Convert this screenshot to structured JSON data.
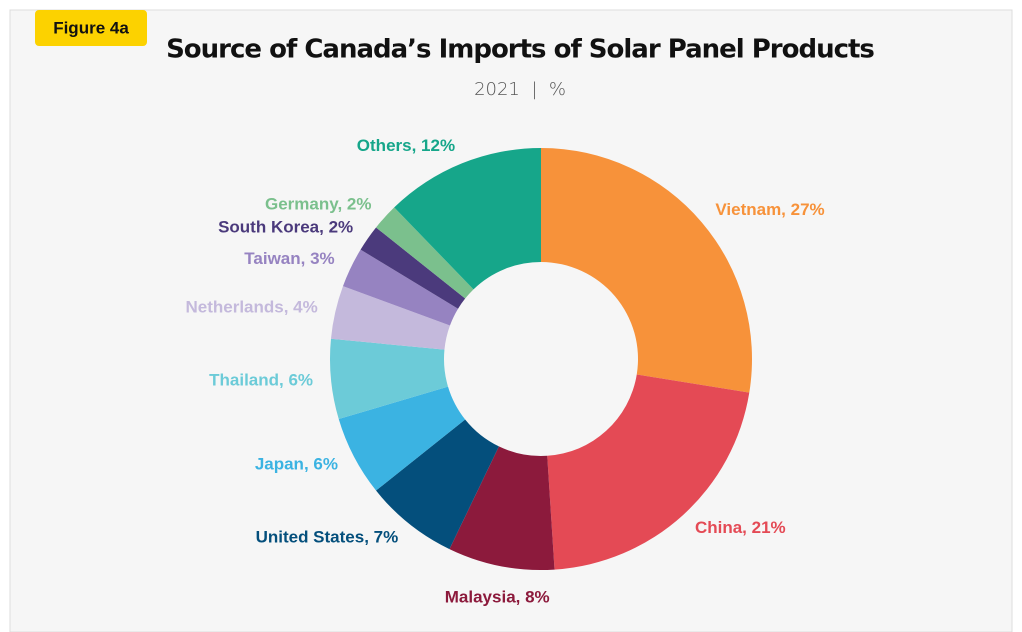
{
  "badge": "Figure 4a",
  "chart_data": {
    "type": "donut",
    "title": "Source of Canada’s Imports of Solar Panel Products",
    "subtitle": "2021  |  %",
    "values": [
      27,
      21,
      8,
      7,
      6,
      6,
      4,
      3,
      2,
      2,
      12
    ],
    "value_labels": [
      "Vietnam, 27%",
      "China, 21%",
      "Malaysia, 8%",
      "United States, 7%",
      "Japan, 6%",
      "Thailand, 6%",
      "Netherlands, 4%",
      "Taiwan, 3%",
      "South Korea, 2%",
      "Germany, 2%",
      "Others, 12%"
    ],
    "colors": [
      "#f7923a",
      "#e44a55",
      "#8c1a3c",
      "#044f7c",
      "#3bb3e2",
      "#6ccbd8",
      "#c4b9dc",
      "#9683c1",
      "#4b3a7c",
      "#7bc08d",
      "#16a68a"
    ]
  }
}
